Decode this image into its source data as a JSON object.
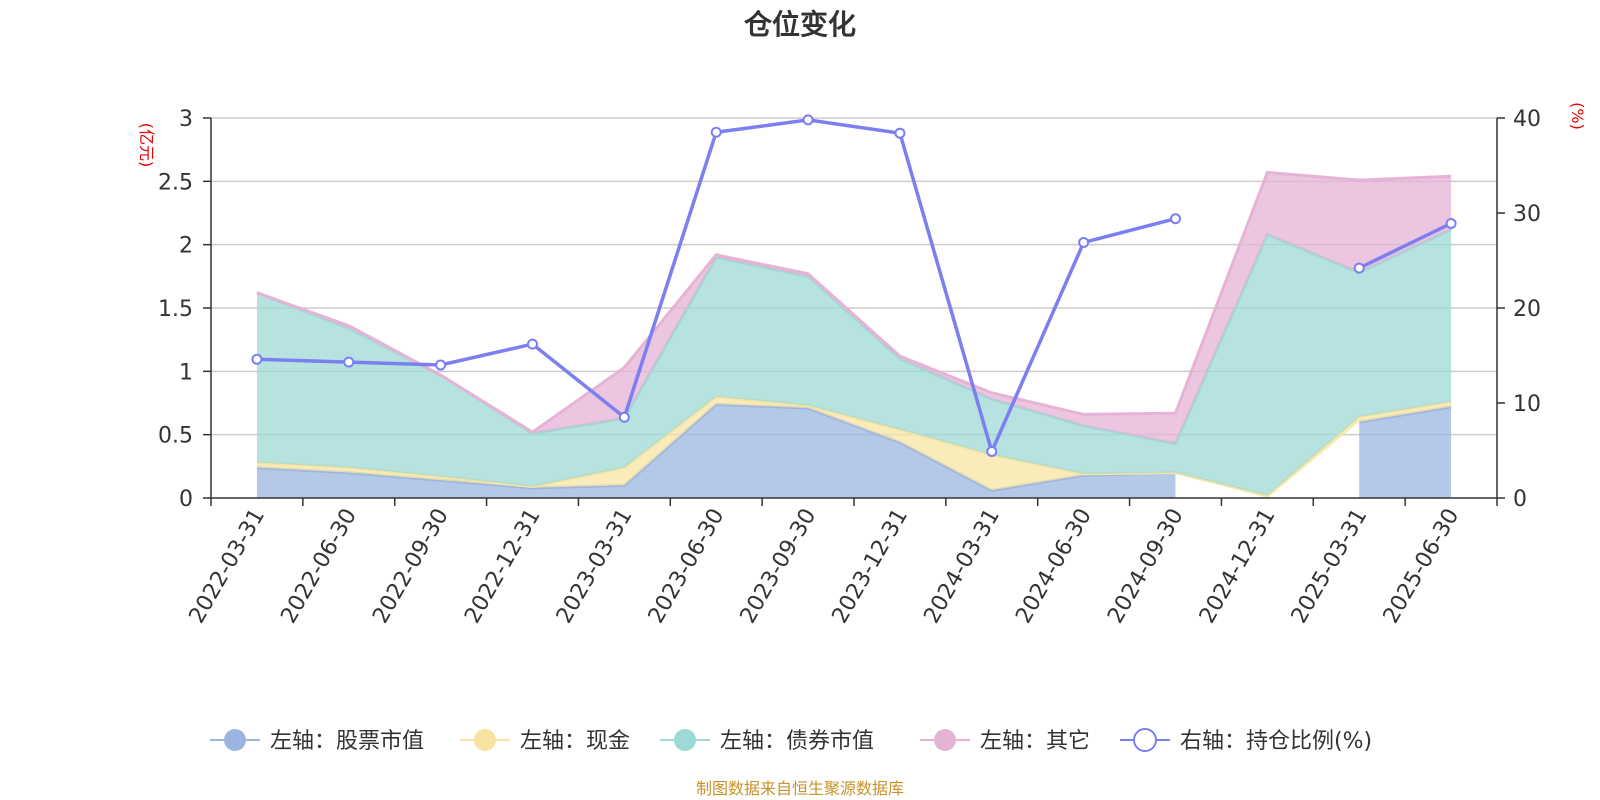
{
  "chart_data": {
    "type": "area",
    "title": "仓位变化",
    "left_axis_unit": "(亿元)",
    "right_axis_unit": "(%)",
    "categories": [
      "2022-03-31",
      "2022-06-30",
      "2022-09-30",
      "2022-12-31",
      "2023-03-31",
      "2023-06-30",
      "2023-09-30",
      "2023-12-31",
      "2024-03-31",
      "2024-06-30",
      "2024-09-30",
      "2024-12-31",
      "2025-03-31",
      "2025-06-30"
    ],
    "left_ylim": [
      0,
      3
    ],
    "left_ticks": [
      "0",
      "0.5",
      "1",
      "1.5",
      "2",
      "2.5",
      "3"
    ],
    "right_ylim": [
      0,
      40
    ],
    "right_ticks": [
      "0",
      "10",
      "20",
      "30",
      "40"
    ],
    "stacked_series": [
      {
        "name": "左轴：股票市值",
        "color": "#9bb5e0",
        "values": [
          0.24,
          0.2,
          0.14,
          0.08,
          0.1,
          0.74,
          0.71,
          0.44,
          0.06,
          0.18,
          0.2,
          null,
          0.6,
          0.72
        ]
      },
      {
        "name": "左轴：现金",
        "color": "#f7e4a3",
        "values": [
          0.04,
          0.04,
          0.03,
          0.01,
          0.14,
          0.06,
          0.02,
          0.1,
          0.28,
          0.01,
          0.0,
          0.02,
          0.04,
          0.04
        ]
      },
      {
        "name": "左轴：债券市值",
        "color": "#9dd9d6",
        "values": [
          1.34,
          1.1,
          0.8,
          0.42,
          0.39,
          1.1,
          1.02,
          0.56,
          0.44,
          0.38,
          0.23,
          2.06,
          1.14,
          1.36
        ]
      },
      {
        "name": "左轴：其它",
        "color": "#e6b3d6",
        "values": [
          0.0,
          0.02,
          0.0,
          0.01,
          0.4,
          0.02,
          0.02,
          0.02,
          0.05,
          0.09,
          0.24,
          0.49,
          0.73,
          0.42
        ]
      }
    ],
    "line_series": {
      "name": "右轴：持仓比例(%)",
      "color": "#7b7ff0",
      "values": [
        14.6,
        14.3,
        14,
        16.2,
        8.5,
        38.5,
        39.8,
        38.4,
        4.9,
        26.9,
        29.4,
        null,
        24.2,
        28.9
      ]
    },
    "grid": true,
    "legend_position": "bottom"
  },
  "source_note": "制图数据来自恒生聚源数据库"
}
